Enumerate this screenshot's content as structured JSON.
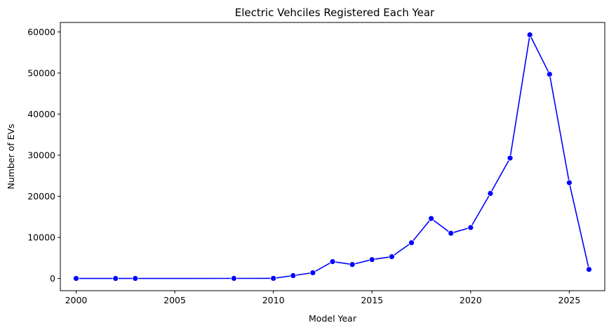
{
  "chart_data": {
    "type": "line",
    "title": "Electric Vehciles Registered Each Year",
    "xlabel": "Model Year",
    "ylabel": "Number of EVs",
    "xlim": [
      1999.2,
      2026.8
    ],
    "ylim": [
      -2970,
      62300
    ],
    "xticks": [
      2000,
      2005,
      2010,
      2015,
      2020,
      2025
    ],
    "yticks": [
      0,
      10000,
      20000,
      30000,
      40000,
      50000,
      60000
    ],
    "grid": false,
    "legend": "none",
    "color": "#0000ff",
    "marker": "circle",
    "series": [
      {
        "x": [
          2000,
          2002,
          2003,
          2008,
          2010,
          2011,
          2012,
          2013,
          2014,
          2015,
          2016,
          2017,
          2018,
          2019,
          2020,
          2021,
          2022,
          2023,
          2024,
          2025,
          2026
        ],
        "y": [
          8,
          2,
          10,
          20,
          30,
          700,
          1400,
          4100,
          3400,
          4600,
          5300,
          8700,
          14600,
          11000,
          12400,
          20700,
          29300,
          59300,
          49700,
          23300,
          2200
        ]
      }
    ]
  }
}
